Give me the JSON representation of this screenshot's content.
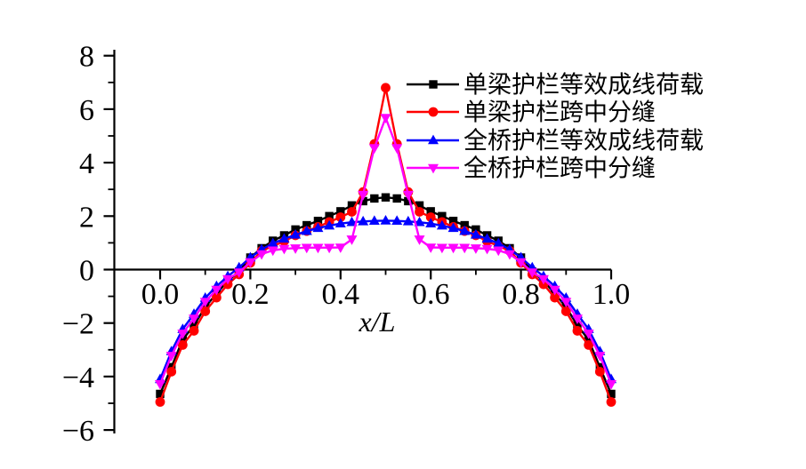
{
  "chart_data": {
    "type": "line",
    "title": "",
    "xlabel": "x/L",
    "ylabel": "",
    "xlim": [
      0,
      1
    ],
    "ylim": [
      -6,
      8
    ],
    "grid": false,
    "legend_position": "top-right-inside",
    "x_tick_values": [
      0.0,
      0.2,
      0.4,
      0.6,
      0.8,
      1.0
    ],
    "x_tick_labels": [
      "0.0",
      "0.2",
      "0.4",
      "0.6",
      "0.8",
      "1.0"
    ],
    "x_minor_tick_values": [
      0.1,
      0.3,
      0.5,
      0.7,
      0.9
    ],
    "y_tick_values": [
      8,
      6,
      4,
      2,
      0,
      -2,
      -4,
      -6
    ],
    "y_tick_labels": [
      "8",
      "6",
      "4",
      "2",
      "0",
      "−2",
      "−4",
      "−6"
    ],
    "y_minor_tick_values": [
      7,
      5,
      3,
      1,
      -1,
      -3,
      -5
    ],
    "x": [
      0.0,
      0.025,
      0.05,
      0.075,
      0.1,
      0.125,
      0.15,
      0.175,
      0.2,
      0.225,
      0.25,
      0.275,
      0.3,
      0.325,
      0.35,
      0.375,
      0.4,
      0.425,
      0.45,
      0.475,
      0.5,
      0.525,
      0.55,
      0.575,
      0.6,
      0.625,
      0.65,
      0.675,
      0.7,
      0.725,
      0.75,
      0.775,
      0.8,
      0.825,
      0.85,
      0.875,
      0.9,
      0.925,
      0.95,
      0.975,
      1.0
    ],
    "series": [
      {
        "name": "单梁护栏等效成线荷载",
        "color": "#000000",
        "marker": "square",
        "values": [
          -4.65,
          -3.65,
          -2.62,
          -2.09,
          -1.4,
          -0.9,
          -0.42,
          -0.08,
          0.45,
          0.8,
          1.08,
          1.28,
          1.5,
          1.66,
          1.82,
          2.0,
          2.18,
          2.4,
          2.56,
          2.66,
          2.7,
          2.66,
          2.56,
          2.4,
          2.18,
          2.0,
          1.82,
          1.66,
          1.5,
          1.28,
          1.08,
          0.8,
          0.45,
          -0.08,
          -0.42,
          -0.9,
          -1.4,
          -2.09,
          -2.62,
          -3.65,
          -4.65
        ]
      },
      {
        "name": "单梁护栏跨中分缝",
        "color": "#ff0000",
        "marker": "circle",
        "values": [
          -4.95,
          -3.82,
          -2.82,
          -2.29,
          -1.56,
          -1.05,
          -0.55,
          -0.18,
          0.25,
          0.7,
          0.88,
          1.06,
          1.28,
          1.44,
          1.6,
          1.78,
          1.96,
          2.16,
          2.9,
          4.7,
          6.8,
          4.7,
          2.9,
          2.16,
          1.96,
          1.78,
          1.6,
          1.44,
          1.28,
          1.06,
          0.88,
          0.7,
          0.25,
          -0.18,
          -0.55,
          -1.05,
          -1.56,
          -2.29,
          -2.82,
          -3.82,
          -4.95
        ]
      },
      {
        "name": "全桥护栏等效成线荷载",
        "color": "#0000ff",
        "marker": "triangle-up",
        "values": [
          -4.1,
          -3.06,
          -2.23,
          -1.66,
          -1.06,
          -0.62,
          -0.25,
          0.08,
          0.45,
          0.75,
          0.98,
          1.15,
          1.3,
          1.44,
          1.55,
          1.64,
          1.72,
          1.77,
          1.8,
          1.82,
          1.83,
          1.82,
          1.8,
          1.77,
          1.72,
          1.64,
          1.55,
          1.44,
          1.3,
          1.15,
          0.98,
          0.75,
          0.45,
          0.08,
          -0.25,
          -0.62,
          -1.06,
          -1.66,
          -2.23,
          -3.06,
          -4.1
        ]
      },
      {
        "name": "全桥护栏跨中分缝",
        "color": "#ff00ff",
        "marker": "triangle-down",
        "values": [
          -4.28,
          -3.22,
          -2.39,
          -1.83,
          -1.2,
          -0.75,
          -0.35,
          -0.1,
          0.28,
          0.58,
          0.72,
          0.78,
          0.8,
          0.82,
          0.82,
          0.82,
          0.83,
          1.13,
          2.8,
          4.55,
          5.68,
          4.55,
          2.8,
          1.13,
          0.83,
          0.82,
          0.82,
          0.82,
          0.8,
          0.78,
          0.72,
          0.58,
          0.28,
          -0.1,
          -0.35,
          -0.75,
          -1.2,
          -1.83,
          -2.39,
          -3.22,
          -4.28
        ]
      }
    ]
  }
}
